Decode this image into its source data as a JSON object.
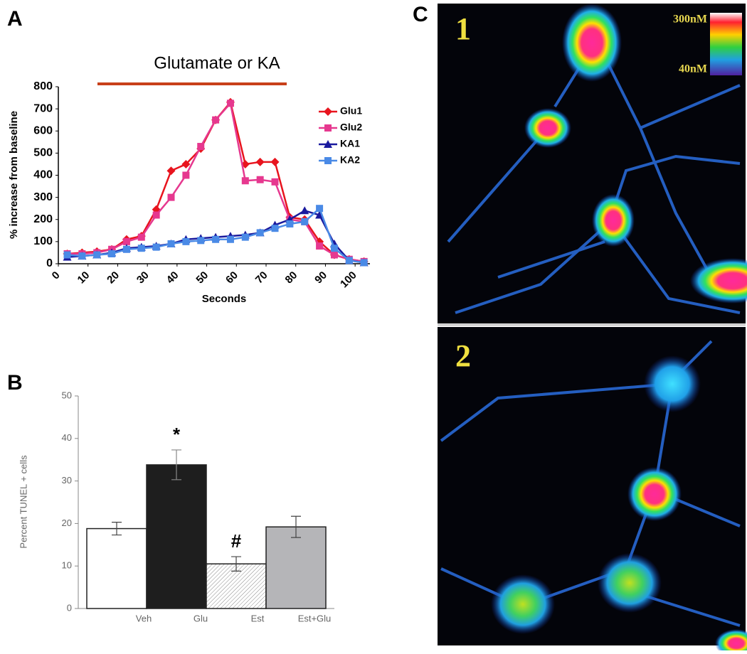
{
  "panel_labels": [
    "A",
    "B",
    "C"
  ],
  "images": [
    {
      "label": "1"
    },
    {
      "label": "2"
    }
  ],
  "colorbar": {
    "max_label": "300nM",
    "min_label": "40nM"
  },
  "chart_data": [
    {
      "type": "line",
      "title": "Glutamate or KA",
      "x_label": "Seconds",
      "y_label": "% increase from baseline",
      "x": [
        3,
        8,
        13,
        18,
        23,
        28,
        33,
        38,
        43,
        48,
        53,
        58,
        63,
        68,
        73,
        78,
        83,
        88,
        93,
        98,
        103
      ],
      "series": [
        {
          "name": "Glu1",
          "color": "#e8141e",
          "marker": "diamond",
          "values": [
            45,
            50,
            55,
            65,
            110,
            125,
            245,
            420,
            450,
            520,
            650,
            730,
            450,
            460,
            460,
            210,
            200,
            100,
            40,
            20,
            10
          ]
        },
        {
          "name": "Glu2",
          "color": "#e6388f",
          "marker": "square",
          "values": [
            45,
            45,
            50,
            65,
            100,
            120,
            220,
            300,
            400,
            530,
            650,
            725,
            375,
            380,
            370,
            200,
            190,
            80,
            40,
            20,
            10
          ]
        },
        {
          "name": "KA1",
          "color": "#1a1a9e",
          "marker": "triangle",
          "values": [
            30,
            35,
            40,
            50,
            70,
            75,
            80,
            90,
            110,
            115,
            120,
            125,
            130,
            140,
            175,
            200,
            240,
            220,
            90,
            15,
            5
          ]
        },
        {
          "name": "KA2",
          "color": "#4a8ae6",
          "marker": "square",
          "values": [
            40,
            35,
            40,
            45,
            65,
            70,
            75,
            90,
            100,
            105,
            110,
            110,
            120,
            140,
            160,
            180,
            190,
            250,
            70,
            15,
            5
          ]
        }
      ],
      "xlim": [
        0,
        105
      ],
      "xticks": [
        0,
        10,
        20,
        30,
        40,
        50,
        60,
        70,
        80,
        90,
        100
      ],
      "ylim": [
        0,
        800
      ],
      "yticks": [
        0,
        100,
        200,
        300,
        400,
        500,
        600,
        700,
        800
      ],
      "legend": "upper right"
    },
    {
      "type": "bar",
      "y_label": "Percent TUNEL + cells",
      "categories": [
        "Veh",
        "Glu",
        "Est",
        "Est+Glu"
      ],
      "values": [
        18.8,
        33.8,
        10.5,
        19.2
      ],
      "errors": [
        1.5,
        3.5,
        1.7,
        2.5
      ],
      "colors": [
        "#ffffff",
        "#1e1e1e",
        "#ffffff",
        "#b5b5b8"
      ],
      "hatched": [
        false,
        false,
        true,
        false
      ],
      "annotations": [
        {
          "text": "*",
          "category": 1
        },
        {
          "text": "#",
          "category": 2
        }
      ],
      "ylim": [
        0,
        50
      ],
      "yticks": [
        0,
        10,
        20,
        30,
        40,
        50
      ]
    }
  ]
}
